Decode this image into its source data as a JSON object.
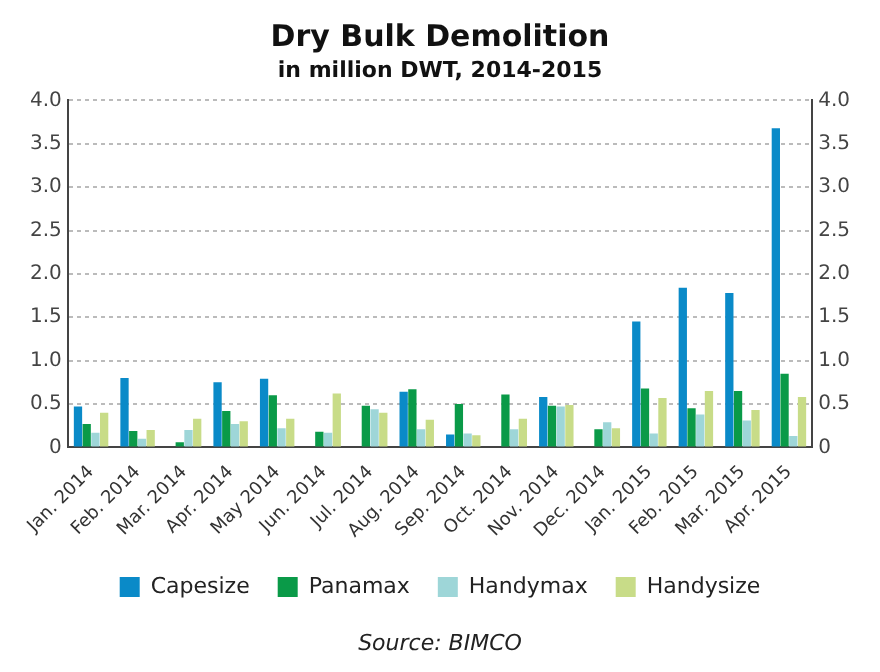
{
  "chart_data": {
    "type": "bar",
    "title": "Dry Bulk Demolition",
    "subtitle": "in million DWT, 2014-2015",
    "categories": [
      "Jan. 2014",
      "Feb. 2014",
      "Mar. 2014",
      "Apr. 2014",
      "May 2014",
      "Jun. 2014",
      "Jul. 2014",
      "Aug. 2014",
      "Sep. 2014",
      "Oct. 2014",
      "Nov. 2014",
      "Dec. 2014",
      "Jan. 2015",
      "Feb. 2015",
      "Mar. 2015",
      "Apr. 2015"
    ],
    "series": [
      {
        "name": "Capesize",
        "color": "#0a8ac8",
        "values": [
          0.47,
          0.8,
          0,
          0.75,
          0.79,
          0,
          0,
          0.64,
          0.15,
          0,
          0.58,
          0,
          1.45,
          1.84,
          1.78,
          3.68
        ]
      },
      {
        "name": "Panamax",
        "color": "#0a9a48",
        "values": [
          0.27,
          0.19,
          0.06,
          0.42,
          0.6,
          0.18,
          0.48,
          0.67,
          0.5,
          0.61,
          0.48,
          0.21,
          0.68,
          0.45,
          0.65,
          0.85
        ]
      },
      {
        "name": "Handymax",
        "color": "#9ed6d8",
        "values": [
          0.17,
          0.1,
          0.2,
          0.27,
          0.22,
          0.17,
          0.44,
          0.21,
          0.16,
          0.21,
          0.47,
          0.29,
          0.16,
          0.38,
          0.31,
          0.13
        ]
      },
      {
        "name": "Handysize",
        "color": "#c8dc88",
        "values": [
          0.4,
          0.2,
          0.33,
          0.3,
          0.33,
          0.62,
          0.4,
          0.32,
          0.14,
          0.33,
          0.49,
          0.22,
          0.57,
          0.65,
          0.43,
          0.58
        ]
      }
    ],
    "ylim": [
      0,
      4
    ],
    "yticks": [
      0,
      {
        "value": 0.5,
        "label": "0.5"
      },
      {
        "value": 1,
        "label": "1.0"
      },
      {
        "value": 1.5,
        "label": "1.5"
      },
      {
        "value": 2,
        "label": "2.0"
      },
      {
        "value": 2.5,
        "label": "2.5"
      },
      {
        "value": 3,
        "label": "3.0"
      },
      {
        "value": 3.5,
        "label": "3.5"
      },
      {
        "value": 4,
        "label": "4.0"
      }
    ],
    "y2lim": [
      0,
      4
    ],
    "y2ticks": [
      0,
      {
        "value": 0.5,
        "label": "0.5"
      },
      {
        "value": 1,
        "label": "1.0"
      },
      {
        "value": 1.5,
        "label": "1.5"
      },
      {
        "value": 2,
        "label": "2.0"
      },
      {
        "value": 2.5,
        "label": "2.5"
      },
      {
        "value": 3,
        "label": "3.0"
      },
      {
        "value": 3.5,
        "label": "3.5"
      },
      {
        "value": 4,
        "label": "4.0"
      }
    ],
    "grid": "y",
    "legend": "bottom",
    "annotations": [
      "Source: BIMCO"
    ]
  }
}
